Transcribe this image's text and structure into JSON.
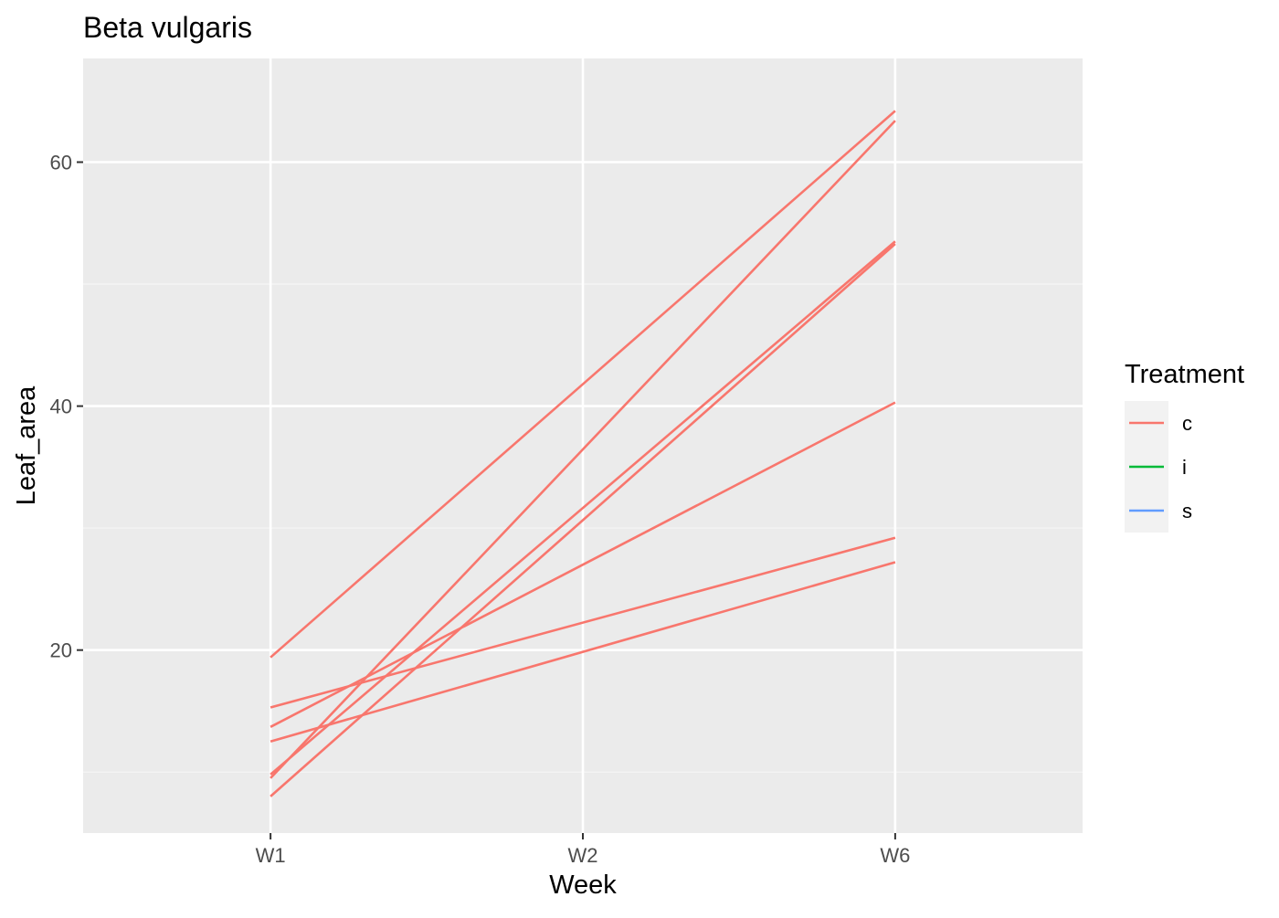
{
  "chart_data": {
    "type": "line",
    "title": "Beta vulgaris",
    "xlabel": "Week",
    "ylabel": "Leaf_area",
    "categories": [
      "W1",
      "W2",
      "W6"
    ],
    "category_positions": [
      1,
      2,
      3
    ],
    "xlim": [
      0.4,
      3.6
    ],
    "ylim": [
      5.0,
      68.5
    ],
    "y_ticks": [
      20,
      40,
      60
    ],
    "y_minor_ticks": [
      10,
      30,
      50
    ],
    "grid": true,
    "legend": {
      "title": "Treatment",
      "placement": "right",
      "entries": [
        {
          "label": "c",
          "color": "#F8766D"
        },
        {
          "label": "i",
          "color": "#00BA38"
        },
        {
          "label": "s",
          "color": "#619CFF"
        }
      ]
    },
    "series": [
      {
        "group": "c",
        "x": [
          "W1",
          "W6"
        ],
        "y": [
          19.4,
          64.2
        ]
      },
      {
        "group": "c",
        "x": [
          "W1",
          "W6"
        ],
        "y": [
          9.5,
          63.4
        ]
      },
      {
        "group": "c",
        "x": [
          "W1",
          "W6"
        ],
        "y": [
          9.8,
          53.5
        ]
      },
      {
        "group": "c",
        "x": [
          "W1",
          "W6"
        ],
        "y": [
          8.0,
          53.3
        ]
      },
      {
        "group": "c",
        "x": [
          "W1",
          "W6"
        ],
        "y": [
          13.7,
          40.3
        ]
      },
      {
        "group": "c",
        "x": [
          "W1",
          "W6"
        ],
        "y": [
          15.3,
          29.2
        ]
      },
      {
        "group": "c",
        "x": [
          "W1",
          "W6"
        ],
        "y": [
          12.5,
          27.2
        ]
      }
    ],
    "colors": {
      "panel_bg": "#EBEBEB",
      "grid_major": "#FFFFFF",
      "grid_minor": "#F5F5F5",
      "text": "#000000",
      "tick_text": "#4D4D4D",
      "tick_mark": "#333333"
    }
  }
}
